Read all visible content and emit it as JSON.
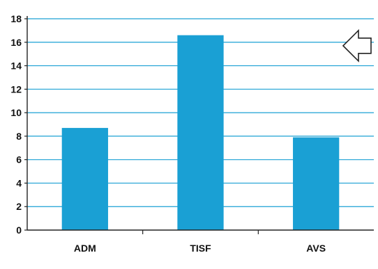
{
  "chart_data": {
    "type": "bar",
    "categories": [
      "ADM",
      "TISF",
      "AVS"
    ],
    "values": [
      8.7,
      16.6,
      7.9
    ],
    "title": "",
    "xlabel": "",
    "ylabel": "",
    "ylim": [
      0,
      18
    ],
    "yticks": [
      0,
      2,
      4,
      6,
      8,
      10,
      12,
      14,
      16,
      18
    ],
    "grid": "horizontal",
    "legend": "none",
    "colors": {
      "bar": "#1aa0d4",
      "grid": "#1aa0d4",
      "axis": "#222222",
      "arrow_fill": "#ffffff",
      "arrow_stroke": "#222222"
    },
    "annotation": {
      "type": "left-arrow-icon",
      "points_to_value": 15.7
    }
  }
}
